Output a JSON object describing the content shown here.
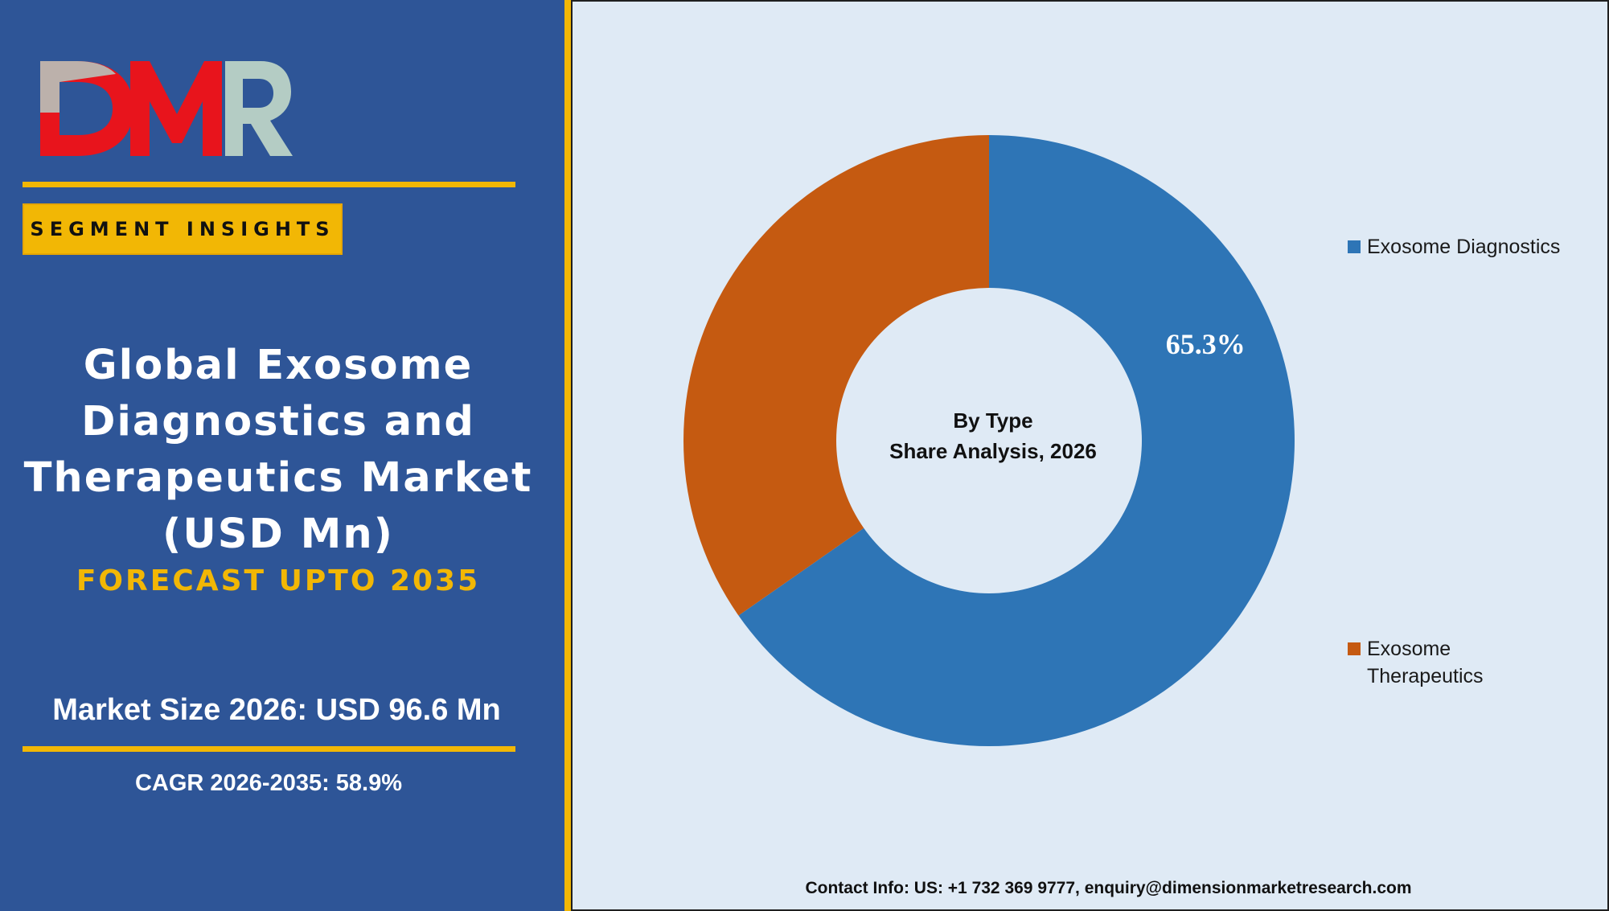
{
  "brand": {
    "logo_text": "DMR",
    "logo_colors": {
      "letter_d_m": "#e8141c",
      "letter_r": "#b4ccc4"
    }
  },
  "left_panel": {
    "badge": "SEGMENT INSIGHTS",
    "title_lines": [
      "Global Exosome",
      "Diagnostics and",
      "Therapeutics Market",
      "(USD Mn)"
    ],
    "forecast": "FORECAST UPTO 2035",
    "market_size": "Market Size 2026: USD 96.6 Mn",
    "cagr": "CAGR 2026-2035: 58.9%"
  },
  "chart_data": {
    "type": "pie",
    "variant": "donut",
    "center_title": [
      "By Type",
      "Share Analysis, 2026"
    ],
    "series": [
      {
        "name": "Exosome Diagnostics",
        "value": 65.3,
        "label": "65.3%",
        "color": "#2e75b6"
      },
      {
        "name": "Exosome Therapeutics",
        "value": 34.7,
        "label": "",
        "color": "#c55a11"
      }
    ],
    "legend": {
      "placement": "right",
      "entries": [
        {
          "lines": [
            "Exosome Diagnostics"
          ],
          "color": "#2e75b6"
        },
        {
          "lines": [
            "Exosome",
            "Therapeutics"
          ],
          "color": "#c55a11"
        }
      ]
    }
  },
  "footer": {
    "contact": "Contact Info: US: +1 732 369 9777, enquiry@dimensionmarketresearch.com"
  },
  "colors": {
    "left_panel_bg": "#2e5597",
    "accent_yellow": "#f2b705",
    "chart_bg": "#dfeaf5"
  }
}
